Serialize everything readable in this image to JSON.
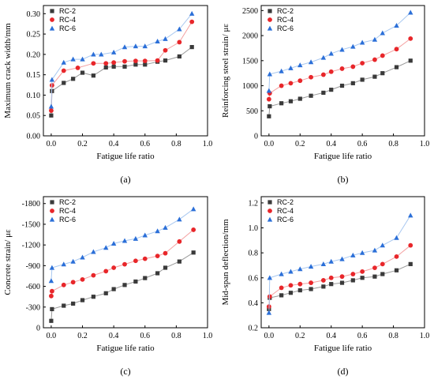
{
  "chart_data": [
    {
      "type": "line",
      "panel_label": "(a)",
      "xlabel": "Fatigue life ratio",
      "ylabel": "Maximum crack width/mm",
      "xlim": [
        -0.05,
        1.0
      ],
      "ylim": [
        0.0,
        0.32
      ],
      "xticks": [
        "0.0",
        "0.2",
        "0.4",
        "0.6",
        "0.8",
        "1.0"
      ],
      "xtick_values": [
        0,
        0.2,
        0.4,
        0.6,
        0.8,
        1.0
      ],
      "yticks": [
        "0.00",
        "0.05",
        "0.10",
        "0.15",
        "0.20",
        "0.25",
        "0.30"
      ],
      "ytick_values": [
        0,
        0.05,
        0.1,
        0.15,
        0.2,
        0.25,
        0.3
      ],
      "legend_position": "top-left",
      "series": [
        {
          "name": "RC-2",
          "x": [
            0,
            0.005,
            0.08,
            0.14,
            0.2,
            0.27,
            0.35,
            0.4,
            0.47,
            0.54,
            0.6,
            0.68,
            0.73,
            0.82,
            0.9
          ],
          "y": [
            0.05,
            0.11,
            0.13,
            0.14,
            0.155,
            0.148,
            0.168,
            0.17,
            0.17,
            0.175,
            0.175,
            0.182,
            0.185,
            0.195,
            0.218
          ]
        },
        {
          "name": "RC-4",
          "x": [
            0,
            0.005,
            0.08,
            0.17,
            0.27,
            0.35,
            0.4,
            0.47,
            0.54,
            0.6,
            0.68,
            0.73,
            0.82,
            0.9
          ],
          "y": [
            0.062,
            0.124,
            0.16,
            0.167,
            0.178,
            0.178,
            0.18,
            0.183,
            0.184,
            0.184,
            0.185,
            0.21,
            0.23,
            0.28
          ]
        },
        {
          "name": "RC-6",
          "x": [
            0,
            0.005,
            0.08,
            0.14,
            0.2,
            0.27,
            0.32,
            0.4,
            0.47,
            0.54,
            0.6,
            0.68,
            0.73,
            0.82,
            0.9
          ],
          "y": [
            0.072,
            0.138,
            0.18,
            0.188,
            0.188,
            0.2,
            0.2,
            0.205,
            0.218,
            0.22,
            0.22,
            0.232,
            0.238,
            0.262,
            0.3
          ]
        }
      ]
    },
    {
      "type": "line",
      "panel_label": "(b)",
      "xlabel": "Fatigue life ratio",
      "ylabel": "Reinforcing steel strain/ με",
      "xlim": [
        -0.05,
        1.0
      ],
      "ylim": [
        0,
        2600
      ],
      "xticks": [
        "0.0",
        "0.2",
        "0.4",
        "0.6",
        "0.8",
        "1.0"
      ],
      "xtick_values": [
        0,
        0.2,
        0.4,
        0.6,
        0.8,
        1.0
      ],
      "yticks": [
        "0",
        "500",
        "1000",
        "1500",
        "2000",
        "2500"
      ],
      "ytick_values": [
        0,
        500,
        1000,
        1500,
        2000,
        2500
      ],
      "legend_position": "top-left",
      "series": [
        {
          "name": "RC-2",
          "x": [
            0,
            0.005,
            0.08,
            0.14,
            0.2,
            0.27,
            0.35,
            0.4,
            0.47,
            0.54,
            0.6,
            0.68,
            0.73,
            0.82,
            0.91
          ],
          "y": [
            390,
            590,
            650,
            690,
            740,
            800,
            860,
            920,
            1000,
            1050,
            1120,
            1180,
            1250,
            1370,
            1500
          ]
        },
        {
          "name": "RC-4",
          "x": [
            0,
            0.005,
            0.08,
            0.14,
            0.2,
            0.27,
            0.35,
            0.4,
            0.47,
            0.54,
            0.6,
            0.68,
            0.73,
            0.82,
            0.91
          ],
          "y": [
            730,
            850,
            1000,
            1050,
            1100,
            1170,
            1220,
            1280,
            1340,
            1380,
            1450,
            1520,
            1600,
            1730,
            1940
          ]
        },
        {
          "name": "RC-6",
          "x": [
            0,
            0.005,
            0.08,
            0.14,
            0.2,
            0.27,
            0.35,
            0.4,
            0.47,
            0.54,
            0.6,
            0.68,
            0.73,
            0.82,
            0.91
          ],
          "y": [
            900,
            1230,
            1290,
            1350,
            1410,
            1470,
            1560,
            1640,
            1720,
            1780,
            1860,
            1920,
            2050,
            2200,
            2460
          ]
        }
      ]
    },
    {
      "type": "line",
      "panel_label": "(c)",
      "xlabel": "Fatigue life ratio",
      "ylabel": "Concrete strain/ με",
      "xlim": [
        -0.05,
        1.0
      ],
      "ylim": [
        0,
        -1900
      ],
      "xticks": [
        "0.0",
        "0.2",
        "0.4",
        "0.6",
        "0.8",
        "1.0"
      ],
      "xtick_values": [
        0,
        0.2,
        0.4,
        0.6,
        0.8,
        1.0
      ],
      "yticks": [
        "0",
        "-300",
        "-600",
        "-900",
        "-1200",
        "-1500",
        "-1800"
      ],
      "ytick_values": [
        0,
        -300,
        -600,
        -900,
        -1200,
        -1500,
        -1800
      ],
      "legend_position": "top-left",
      "series": [
        {
          "name": "RC-2",
          "x": [
            0,
            0.005,
            0.08,
            0.14,
            0.2,
            0.27,
            0.35,
            0.4,
            0.47,
            0.54,
            0.6,
            0.68,
            0.73,
            0.82,
            0.91
          ],
          "y": [
            -100,
            -270,
            -320,
            -350,
            -400,
            -450,
            -500,
            -560,
            -620,
            -670,
            -720,
            -790,
            -870,
            -960,
            -1090
          ]
        },
        {
          "name": "RC-4",
          "x": [
            0,
            0.005,
            0.08,
            0.14,
            0.2,
            0.27,
            0.35,
            0.4,
            0.47,
            0.54,
            0.6,
            0.68,
            0.73,
            0.82,
            0.91
          ],
          "y": [
            -460,
            -530,
            -620,
            -660,
            -700,
            -760,
            -820,
            -870,
            -920,
            -970,
            -1000,
            -1040,
            -1080,
            -1250,
            -1420
          ]
        },
        {
          "name": "RC-6",
          "x": [
            0,
            0.005,
            0.08,
            0.14,
            0.2,
            0.27,
            0.35,
            0.4,
            0.47,
            0.54,
            0.6,
            0.68,
            0.73,
            0.82,
            0.91
          ],
          "y": [
            -680,
            -870,
            -920,
            -960,
            -1020,
            -1100,
            -1160,
            -1220,
            -1260,
            -1290,
            -1340,
            -1400,
            -1450,
            -1570,
            -1720
          ]
        }
      ]
    },
    {
      "type": "line",
      "panel_label": "(d)",
      "xlabel": "Fatigue life ratio",
      "ylabel": "Mid-span deflection/mm",
      "xlim": [
        -0.05,
        1.0
      ],
      "ylim": [
        0.2,
        1.25
      ],
      "xticks": [
        "0.0",
        "0.2",
        "0.4",
        "0.6",
        "0.8",
        "1.0"
      ],
      "xtick_values": [
        0,
        0.2,
        0.4,
        0.6,
        0.8,
        1.0
      ],
      "yticks": [
        "0.2",
        "0.4",
        "0.6",
        "0.8",
        "1.0",
        "1.2"
      ],
      "ytick_values": [
        0.2,
        0.4,
        0.6,
        0.8,
        1.0,
        1.2
      ],
      "legend_position": "top-left",
      "series": [
        {
          "name": "RC-2",
          "x": [
            0,
            0.005,
            0.08,
            0.14,
            0.2,
            0.27,
            0.35,
            0.4,
            0.47,
            0.54,
            0.6,
            0.68,
            0.73,
            0.82,
            0.91
          ],
          "y": [
            0.35,
            0.44,
            0.46,
            0.48,
            0.5,
            0.51,
            0.53,
            0.55,
            0.56,
            0.58,
            0.6,
            0.61,
            0.63,
            0.66,
            0.71
          ]
        },
        {
          "name": "RC-4",
          "x": [
            0,
            0.005,
            0.08,
            0.14,
            0.2,
            0.27,
            0.35,
            0.4,
            0.47,
            0.54,
            0.6,
            0.68,
            0.73,
            0.82,
            0.91
          ],
          "y": [
            0.37,
            0.45,
            0.52,
            0.54,
            0.55,
            0.56,
            0.58,
            0.6,
            0.61,
            0.63,
            0.65,
            0.68,
            0.71,
            0.77,
            0.86
          ]
        },
        {
          "name": "RC-6",
          "x": [
            0,
            0.005,
            0.08,
            0.14,
            0.2,
            0.27,
            0.35,
            0.4,
            0.47,
            0.54,
            0.6,
            0.68,
            0.73,
            0.82,
            0.91
          ],
          "y": [
            0.32,
            0.6,
            0.63,
            0.65,
            0.67,
            0.69,
            0.71,
            0.73,
            0.75,
            0.78,
            0.8,
            0.82,
            0.86,
            0.92,
            1.1
          ]
        }
      ]
    }
  ],
  "styles": {
    "series_colors": {
      "RC-2": "#3a3a3a",
      "RC-4": "#e8262a",
      "RC-6": "#2b6fd8"
    },
    "line_colors": {
      "RC-2": "#9a9a9a",
      "RC-4": "#f4a0a0",
      "RC-6": "#a9c8f0"
    },
    "markers": {
      "RC-2": "square",
      "RC-4": "circle",
      "RC-6": "triangle"
    }
  }
}
